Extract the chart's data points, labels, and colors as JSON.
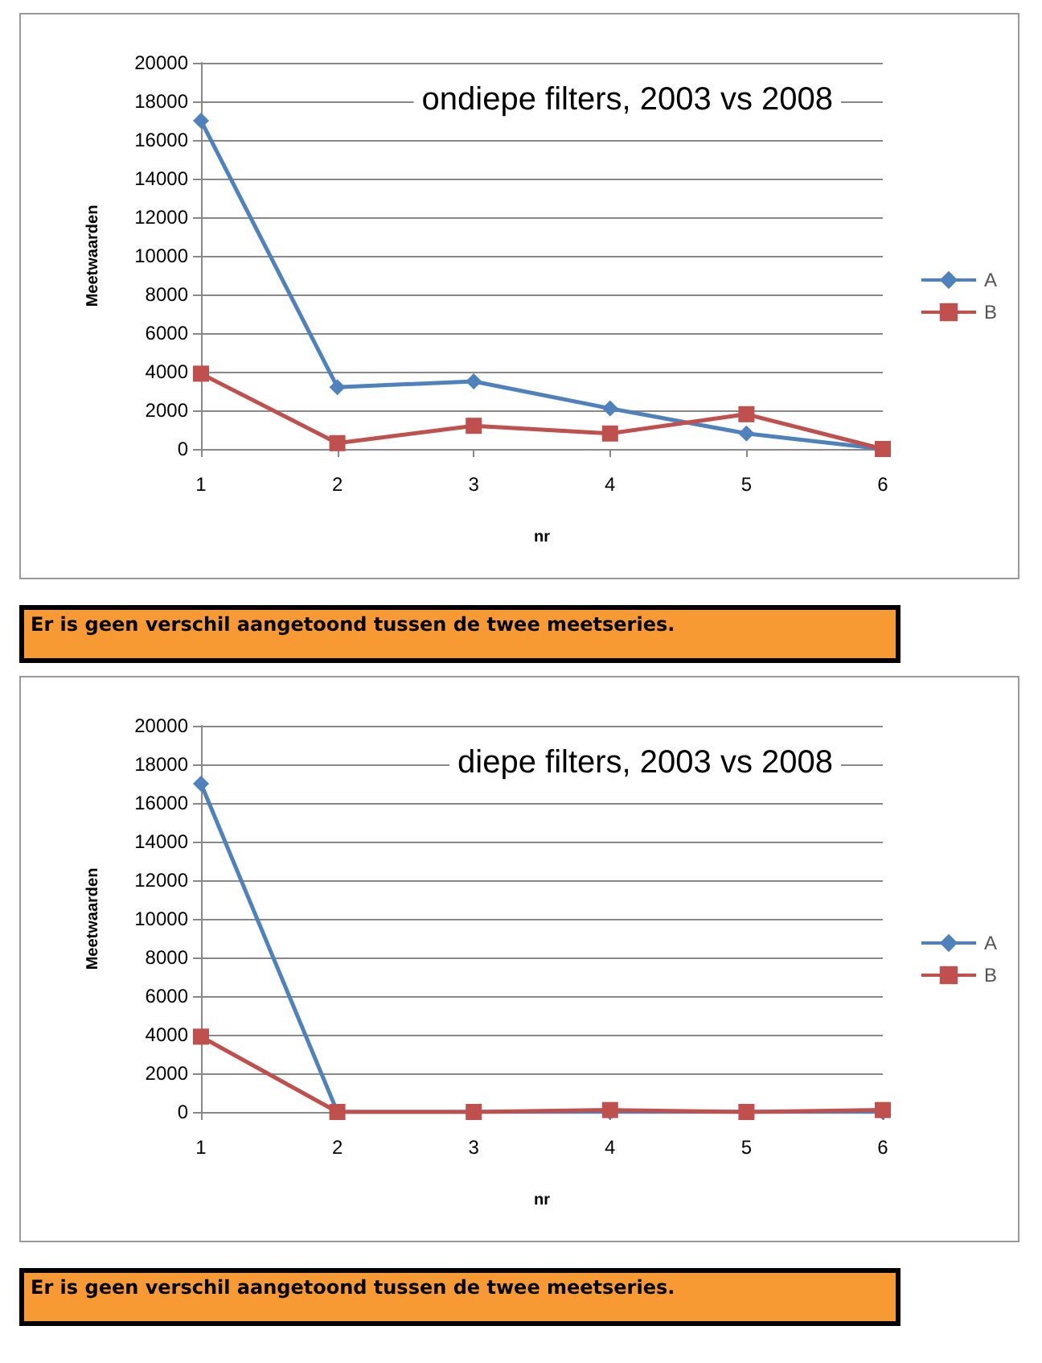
{
  "chart_data": [
    {
      "type": "line",
      "title": "ondiepe filters, 2003 vs 2008",
      "xlabel": "nr",
      "ylabel": "Meetwaarden",
      "categories": [
        "1",
        "2",
        "3",
        "4",
        "5",
        "6"
      ],
      "series": [
        {
          "name": "A",
          "color": "#4f81bd",
          "marker": "diamond",
          "values": [
            17000,
            3200,
            3500,
            2100,
            800,
            0
          ]
        },
        {
          "name": "B",
          "color": "#c0504d",
          "marker": "square",
          "values": [
            3900,
            300,
            1200,
            800,
            1800,
            0
          ]
        }
      ],
      "ylim": [
        0,
        20000
      ],
      "yticks": [
        0,
        2000,
        4000,
        6000,
        8000,
        10000,
        12000,
        14000,
        16000,
        18000,
        20000
      ],
      "grid": "y",
      "legend": "right",
      "annotations": [
        "Er is geen verschil aangetoond tussen de twee meetseries."
      ]
    },
    {
      "type": "line",
      "title": "diepe filters, 2003 vs 2008",
      "xlabel": "nr",
      "ylabel": "Meetwaarden",
      "categories": [
        "1",
        "2",
        "3",
        "4",
        "5",
        "6"
      ],
      "series": [
        {
          "name": "A",
          "color": "#4f81bd",
          "marker": "diamond",
          "values": [
            17000,
            0,
            0,
            0,
            0,
            0
          ]
        },
        {
          "name": "B",
          "color": "#c0504d",
          "marker": "square",
          "values": [
            3900,
            0,
            0,
            100,
            0,
            100
          ]
        }
      ],
      "ylim": [
        0,
        20000
      ],
      "yticks": [
        0,
        2000,
        4000,
        6000,
        8000,
        10000,
        12000,
        14000,
        16000,
        18000,
        20000
      ],
      "grid": "y",
      "legend": "right",
      "annotations": [
        "Er is geen verschil aangetoond tussen de twee meetseries."
      ]
    }
  ]
}
